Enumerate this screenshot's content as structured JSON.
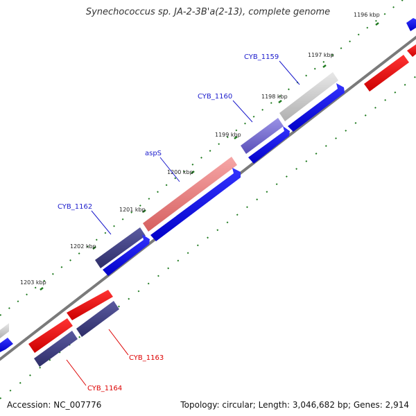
{
  "title": "Synechococcus sp. JA-2-3B'a(2-13), complete genome",
  "footer": {
    "accession": "Accession: NC_007776",
    "stats": "Topology: circular; Length: 3,046,682 bp; Genes: 2,914"
  },
  "ticks": {
    "t1196": "1196 kbp",
    "t1197": "1197 kbp",
    "t1198": "1198 kbp",
    "t1199": "1199 kbp",
    "t1200": "1200 kbp",
    "t1201": "1201 kbp",
    "t1202": "1202 kbp",
    "t1203": "1203 kbp"
  },
  "genes": {
    "cyb1159": "CYB_1159",
    "cyb1160": "CYB_1160",
    "asps": "aspS",
    "cyb1162": "CYB_1162",
    "cyb1163": "CYB_1163",
    "cyb1164": "CYB_1164"
  },
  "colors": {
    "backbone": "#7a7a7a",
    "forward_cds": "#0000ee",
    "reverse_cds": "#ee0000",
    "feature_gray": "#c8c8c8",
    "feature_indigo": "#404080",
    "feature_violet": "#7a70d0",
    "feature_salmon": "#e88080",
    "label_blue": "#1a1acc",
    "label_red": "#dd0000",
    "tick_green": "#1e7a1e"
  }
}
